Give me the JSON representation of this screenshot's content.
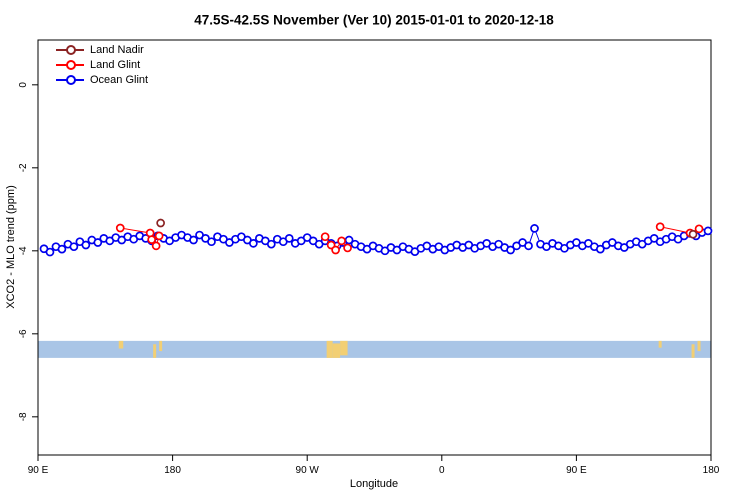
{
  "title": "47.5S-42.5S November (Ver 10)   2015-01-01 to 2020-12-18",
  "axes": {
    "x_label": "Longitude",
    "y_label": "XCO2 - MLO trend (ppm)",
    "x_ticks": [
      {
        "deg": 0,
        "label": "90 E"
      },
      {
        "deg": 90,
        "label": "180"
      },
      {
        "deg": 180,
        "label": "90 W"
      },
      {
        "deg": 270,
        "label": "0"
      },
      {
        "deg": 360,
        "label": "90 E"
      },
      {
        "deg": 450,
        "label": "180"
      }
    ],
    "y_ticks": [
      {
        "val": 0,
        "label": "0"
      },
      {
        "val": -2,
        "label": "-2"
      },
      {
        "val": -4,
        "label": "-4"
      },
      {
        "val": -6,
        "label": "-6"
      },
      {
        "val": -8,
        "label": "-8"
      }
    ]
  },
  "legend": [
    {
      "label": "Land Nadir",
      "color": "#8b2323"
    },
    {
      "label": "Land Glint",
      "color": "#ff0000"
    },
    {
      "label": "Ocean Glint",
      "color": "#0000ee"
    }
  ],
  "chart_data": {
    "type": "line",
    "title": "47.5S-42.5S November (Ver 10)   2015-01-01 to 2020-12-18",
    "xlabel": "Longitude",
    "ylabel": "XCO2 - MLO trend (ppm)",
    "x_unit": "degrees east of 90E along axis (axis wraps past dateline: 90E,180,90W,0,90E,180)",
    "xlim": [
      0,
      450
    ],
    "ylim": [
      -8.92,
      1.08
    ],
    "grid": false,
    "legend_position": "top-left",
    "series": [
      {
        "name": "Land Nadir",
        "color": "#8b2323",
        "points": [
          [
            82,
            -3.33
          ],
          [
            438,
            -3.6
          ]
        ]
      },
      {
        "name": "Land Glint",
        "color": "#ff0000",
        "points": [
          [
            55,
            -3.45
          ],
          [
            75,
            -3.57
          ],
          [
            76,
            -3.73
          ],
          [
            79,
            -3.88
          ],
          [
            81,
            -3.64
          ],
          [
            192,
            -3.66
          ],
          [
            196,
            -3.86
          ],
          [
            199,
            -3.98
          ],
          [
            203,
            -3.76
          ],
          [
            207,
            -3.93
          ],
          [
            416,
            -3.42
          ],
          [
            436,
            -3.57
          ],
          [
            442,
            -3.47
          ]
        ]
      },
      {
        "name": "Ocean Glint",
        "color": "#0000ee",
        "points": [
          [
            4,
            -3.95
          ],
          [
            8,
            -4.03
          ],
          [
            12,
            -3.9
          ],
          [
            16,
            -3.96
          ],
          [
            20,
            -3.84
          ],
          [
            24,
            -3.9
          ],
          [
            28,
            -3.78
          ],
          [
            32,
            -3.86
          ],
          [
            36,
            -3.74
          ],
          [
            40,
            -3.8
          ],
          [
            44,
            -3.7
          ],
          [
            48,
            -3.76
          ],
          [
            52,
            -3.68
          ],
          [
            56,
            -3.74
          ],
          [
            60,
            -3.66
          ],
          [
            64,
            -3.72
          ],
          [
            68,
            -3.64
          ],
          [
            72,
            -3.7
          ],
          [
            76,
            -3.76
          ],
          [
            80,
            -3.64
          ],
          [
            84,
            -3.7
          ],
          [
            88,
            -3.76
          ],
          [
            92,
            -3.68
          ],
          [
            96,
            -3.62
          ],
          [
            100,
            -3.68
          ],
          [
            104,
            -3.74
          ],
          [
            108,
            -3.62
          ],
          [
            112,
            -3.7
          ],
          [
            116,
            -3.78
          ],
          [
            120,
            -3.66
          ],
          [
            124,
            -3.72
          ],
          [
            128,
            -3.8
          ],
          [
            132,
            -3.72
          ],
          [
            136,
            -3.66
          ],
          [
            140,
            -3.74
          ],
          [
            144,
            -3.82
          ],
          [
            148,
            -3.7
          ],
          [
            152,
            -3.76
          ],
          [
            156,
            -3.84
          ],
          [
            160,
            -3.72
          ],
          [
            164,
            -3.78
          ],
          [
            168,
            -3.7
          ],
          [
            172,
            -3.82
          ],
          [
            176,
            -3.76
          ],
          [
            180,
            -3.68
          ],
          [
            184,
            -3.76
          ],
          [
            188,
            -3.84
          ],
          [
            192,
            -3.76
          ],
          [
            196,
            -3.82
          ],
          [
            200,
            -3.88
          ],
          [
            204,
            -3.8
          ],
          [
            208,
            -3.74
          ],
          [
            212,
            -3.84
          ],
          [
            216,
            -3.9
          ],
          [
            220,
            -3.96
          ],
          [
            224,
            -3.88
          ],
          [
            228,
            -3.94
          ],
          [
            232,
            -4.0
          ],
          [
            236,
            -3.92
          ],
          [
            240,
            -3.98
          ],
          [
            244,
            -3.9
          ],
          [
            248,
            -3.96
          ],
          [
            252,
            -4.02
          ],
          [
            256,
            -3.94
          ],
          [
            260,
            -3.88
          ],
          [
            264,
            -3.96
          ],
          [
            268,
            -3.9
          ],
          [
            272,
            -3.98
          ],
          [
            276,
            -3.92
          ],
          [
            280,
            -3.86
          ],
          [
            284,
            -3.92
          ],
          [
            288,
            -3.86
          ],
          [
            292,
            -3.94
          ],
          [
            296,
            -3.88
          ],
          [
            300,
            -3.82
          ],
          [
            304,
            -3.9
          ],
          [
            308,
            -3.84
          ],
          [
            312,
            -3.92
          ],
          [
            316,
            -3.98
          ],
          [
            320,
            -3.88
          ],
          [
            324,
            -3.8
          ],
          [
            328,
            -3.88
          ],
          [
            332,
            -3.46
          ],
          [
            336,
            -3.84
          ],
          [
            340,
            -3.9
          ],
          [
            344,
            -3.82
          ],
          [
            348,
            -3.88
          ],
          [
            352,
            -3.94
          ],
          [
            356,
            -3.86
          ],
          [
            360,
            -3.8
          ],
          [
            364,
            -3.88
          ],
          [
            368,
            -3.82
          ],
          [
            372,
            -3.9
          ],
          [
            376,
            -3.96
          ],
          [
            380,
            -3.86
          ],
          [
            384,
            -3.8
          ],
          [
            388,
            -3.88
          ],
          [
            392,
            -3.92
          ],
          [
            396,
            -3.84
          ],
          [
            400,
            -3.78
          ],
          [
            404,
            -3.84
          ],
          [
            408,
            -3.76
          ],
          [
            412,
            -3.7
          ],
          [
            416,
            -3.78
          ],
          [
            420,
            -3.72
          ],
          [
            424,
            -3.66
          ],
          [
            428,
            -3.72
          ],
          [
            432,
            -3.64
          ],
          [
            436,
            -3.58
          ],
          [
            440,
            -3.64
          ],
          [
            444,
            -3.56
          ],
          [
            448,
            -3.52
          ]
        ]
      }
    ],
    "map_band": {
      "y_top": -6.17,
      "y_bottom": -6.58,
      "ocean_color": "#a9c5e6",
      "land_color": "#f2cf74",
      "land_patches": [
        [
          54,
          57,
          0,
          0.45
        ],
        [
          77,
          79,
          0.2,
          1
        ],
        [
          81,
          83,
          0,
          0.6
        ],
        [
          193,
          197,
          0,
          1
        ],
        [
          197,
          202,
          0.15,
          1
        ],
        [
          202,
          207,
          0,
          0.85
        ],
        [
          415,
          417,
          0,
          0.4
        ],
        [
          437,
          439,
          0.2,
          1
        ],
        [
          441,
          443,
          0,
          0.6
        ]
      ]
    }
  }
}
